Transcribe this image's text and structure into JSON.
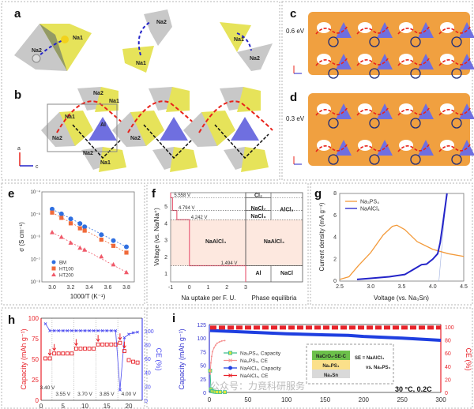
{
  "panels": {
    "a": "a",
    "b": "b",
    "c": "c",
    "d": "d",
    "e": "e",
    "f": "f",
    "g": "g",
    "h": "h",
    "i": "i"
  },
  "structure": {
    "na1": "Na1",
    "na2": "Na2",
    "al": "Al",
    "axis_a": "a",
    "axis_c": "c",
    "barrier_c": "0.6 eV",
    "barrier_d": "0.3 eV"
  },
  "colors": {
    "octa_yellow": "#e6e35a",
    "octa_gray": "#c8c8c8",
    "al_blue": "#6f6fe0",
    "cl_green": "#27c427",
    "path_red": "#e8231b",
    "path_black": "#111111",
    "isosurface": "#f0a040"
  },
  "watermark": "公众号：力竟科研服务",
  "chart_data": [
    {
      "id": "e",
      "type": "scatter",
      "ylog": true,
      "xlabel": "1000/T (K⁻¹)",
      "ylabel": "σ (S cm⁻¹)",
      "xlim": [
        2.9,
        3.88
      ],
      "ylim": [
        1e-08,
        0.0001
      ],
      "xticks": [
        "3.0",
        "3.2",
        "3.4",
        "3.6",
        "3.8"
      ],
      "yticks": [
        "10⁻⁸",
        "10⁻⁷",
        "10⁻⁶",
        "10⁻⁵",
        "10⁻⁴"
      ],
      "x": [
        3.0,
        3.1,
        3.2,
        3.3,
        3.35,
        3.53,
        3.66,
        3.8
      ],
      "series": [
        {
          "name": "BM",
          "color": "#2f6fe0",
          "marker": "circle",
          "values": [
            1.7e-05,
            1.05e-05,
            6.3e-06,
            3.9e-06,
            2.8e-06,
            1.25e-06,
            6.8e-07,
            3.6e-07
          ]
        },
        {
          "name": "HT100",
          "color": "#f06a3a",
          "marker": "square",
          "values": [
            1.2e-05,
            7e-06,
            4e-06,
            2.4e-06,
            1.9e-06,
            7.5e-07,
            4e-07,
            2e-07
          ]
        },
        {
          "name": "HT200",
          "color": "#f05a6a",
          "marker": "triangle",
          "values": [
            1.6e-06,
            1e-06,
            5.5e-07,
            3.3e-07,
            2.7e-07,
            1.35e-07,
            6e-08,
            2.7e-08
          ]
        }
      ],
      "legend": "bottom-left"
    },
    {
      "id": "f",
      "type": "step",
      "xlabel": "Na uptake per F. U.",
      "ylabel": "Voltage (vs. Na/Na⁺)",
      "xlabel2": "Phase equilibria",
      "xlim": [
        -1,
        3
      ],
      "ylim": [
        0.5,
        5.85
      ],
      "xticks": [
        "-1",
        "0",
        "1",
        "2",
        "3"
      ],
      "yticks": [
        "1",
        "2",
        "3",
        "4",
        "5"
      ],
      "steps": [
        {
          "x0": -1,
          "x1": -0.9,
          "v": 5.558
        },
        {
          "x0": -0.9,
          "x1": -0.67,
          "v": 4.794
        },
        {
          "x0": -0.67,
          "x1": 0,
          "v": 4.242
        },
        {
          "x0": 0,
          "x1": 3,
          "v": 1.494
        }
      ],
      "voltage_labels": [
        "5.558 V",
        "4.794 V",
        "4.242 V",
        "1.494 V"
      ],
      "region_label": "NaAlCl₄",
      "phases": {
        "cl2": "Cl₂",
        "nacl7": "NaCl₇",
        "nacl3": "NaCl₃",
        "alcl3": "AlCl₃",
        "naalcl4": "NaAlCl₄",
        "al": "Al",
        "nacl": "NaCl"
      }
    },
    {
      "id": "g",
      "type": "line",
      "xlabel": "Voltage (vs. Na₃Sn)",
      "ylabel": "Current density (mA g⁻¹)",
      "xlim": [
        2.5,
        4.5
      ],
      "ylim": [
        0,
        8
      ],
      "xticks": [
        "2.5",
        "3.0",
        "3.5",
        "4.0",
        "4.5"
      ],
      "yticks": [
        "0",
        "2",
        "4",
        "6",
        "8"
      ],
      "series": [
        {
          "name": "Na₃PS₄",
          "color": "#f39a3a",
          "points": [
            [
              2.5,
              0.15
            ],
            [
              2.65,
              0.4
            ],
            [
              2.8,
              1.4
            ],
            [
              3.0,
              2.6
            ],
            [
              3.2,
              4.2
            ],
            [
              3.35,
              5.0
            ],
            [
              3.42,
              5.1
            ],
            [
              3.55,
              4.7
            ],
            [
              3.75,
              3.6
            ],
            [
              4.0,
              2.9
            ],
            [
              4.25,
              2.5
            ],
            [
              4.5,
              2.25
            ]
          ]
        },
        {
          "name": "NaAlCl₄",
          "color": "#2323c8",
          "points": [
            [
              2.78,
              0.15
            ],
            [
              3.0,
              0.25
            ],
            [
              3.3,
              0.4
            ],
            [
              3.55,
              0.6
            ],
            [
              3.7,
              1.1
            ],
            [
              3.82,
              1.5
            ],
            [
              3.9,
              1.55
            ],
            [
              4.0,
              2.0
            ],
            [
              4.08,
              2.5
            ],
            [
              4.12,
              3.5
            ],
            [
              4.17,
              5.5
            ],
            [
              4.23,
              8
            ]
          ]
        }
      ],
      "legend": "top-left"
    },
    {
      "id": "h",
      "type": "scatter-dual",
      "ylabel": "Capacity (mAh g⁻¹)",
      "y2label": "CE (%)",
      "xlim": [
        0,
        22.5
      ],
      "ylim": [
        0,
        100
      ],
      "y2lim": [
        0,
        118
      ],
      "xticks": [
        "0",
        "5",
        "10",
        "15",
        "20"
      ],
      "yticks": [
        "0",
        "25",
        "50",
        "75",
        "100"
      ],
      "y2ticks": [
        "0",
        "20",
        "40",
        "60",
        "80",
        "100"
      ],
      "x": [
        1,
        2,
        3,
        4,
        5,
        6,
        7,
        8,
        9,
        10,
        11,
        12,
        13,
        14,
        15,
        16,
        17,
        18,
        19,
        20,
        21,
        22
      ],
      "capacity": [
        51,
        51,
        57,
        57,
        57,
        57,
        57,
        63,
        63,
        63,
        63,
        63,
        68,
        68,
        68,
        68,
        68,
        70,
        60,
        49,
        47,
        46
      ],
      "ce": [
        110,
        100,
        100,
        100,
        100,
        100,
        100,
        100,
        100,
        100,
        100,
        100,
        100,
        100,
        100,
        100,
        100,
        15,
        90,
        95,
        97,
        98
      ],
      "capacity_color": "#e8232a",
      "ce_color": "#4b4bf0",
      "arrow_cycles": [
        2,
        3,
        8,
        13,
        18,
        19
      ],
      "voltage_steps": [
        "3.40 V",
        "3.55 V",
        "3.70 V",
        "3.85 V",
        "4.00 V"
      ]
    },
    {
      "id": "i",
      "type": "line-dual",
      "ylabel": "Capacity (mAh g⁻¹)",
      "y2label": "CE (%)",
      "xlim": [
        0,
        300
      ],
      "ylim": [
        0,
        125
      ],
      "y2lim": [
        0,
        103.6
      ],
      "xticks": [
        "0",
        "50",
        "100",
        "150",
        "200",
        "250",
        "300"
      ],
      "yticks": [
        "0",
        "25",
        "50",
        "75",
        "100",
        "125"
      ],
      "y2ticks": [
        "0",
        "20",
        "40",
        "60",
        "80",
        "100"
      ],
      "series": [
        {
          "name": "Na₃PS₄, Capacity",
          "color": "#3fbf8f",
          "axis": "left",
          "points": [
            [
              1,
              40
            ],
            [
              2,
              6
            ],
            [
              3,
              3
            ],
            [
              4,
              2
            ],
            [
              6,
              1.5
            ],
            [
              8,
              1
            ],
            [
              10,
              0.8
            ],
            [
              14,
              0.6
            ],
            [
              20,
              0.5
            ]
          ]
        },
        {
          "name": "Na₃PS₄, CE",
          "color": "#f59090",
          "axis": "right",
          "points": [
            [
              1,
              28
            ],
            [
              2,
              45
            ],
            [
              3,
              55
            ],
            [
              4,
              62
            ],
            [
              6,
              68
            ],
            [
              8,
              72
            ],
            [
              10,
              75
            ],
            [
              13,
              77
            ],
            [
              16,
              78.5
            ],
            [
              20,
              79
            ]
          ]
        },
        {
          "name": "NaAlCl₄, Capacity",
          "color": "#1f3fe0",
          "axis": "left",
          "points": [
            [
              1,
              114
            ],
            [
              50,
              111
            ],
            [
              100,
              108
            ],
            [
              150,
              106
            ],
            [
              180,
              105
            ],
            [
              200,
              103
            ],
            [
              250,
              100
            ],
            [
              300,
              96
            ]
          ]
        },
        {
          "name": "NaAlCl₄, CE",
          "color": "#e8232a",
          "axis": "right",
          "points": [
            [
              1,
              99
            ],
            [
              300,
              99
            ]
          ]
        }
      ],
      "inset": {
        "layers": [
          "NaCrO₂-SE-C",
          "Na₃PS₄",
          "Na₃Sn"
        ],
        "layer_colors": [
          "#6cc04a",
          "#fbe08a",
          "#d9d9d9"
        ],
        "note1": "SE = NaAlCl₄",
        "note2": "vs. Na₃PS₄"
      },
      "condition": "30 °C, 0.2C"
    }
  ]
}
